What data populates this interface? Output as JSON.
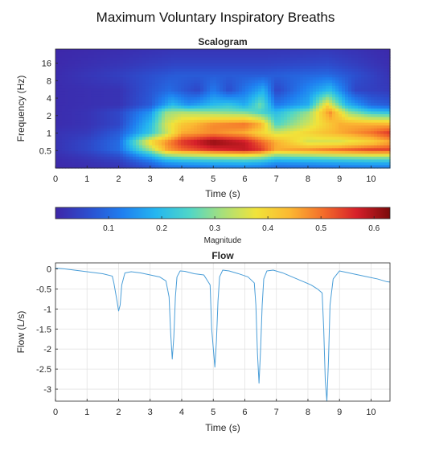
{
  "figure": {
    "title": "Maximum Voluntary Inspiratory Breaths"
  },
  "colormap": [
    "#3e26a8",
    "#2c4fcf",
    "#1f7ff0",
    "#24b6f0",
    "#4fd6c8",
    "#a8e07a",
    "#f1e33a",
    "#fbb832",
    "#f46d2a",
    "#d6202a",
    "#7a0a0a"
  ],
  "chart_data": [
    {
      "type": "heatmap",
      "title": "Scalogram",
      "xlabel": "Time (s)",
      "ylabel": "Frequency (Hz)",
      "xlim": [
        0,
        10.6
      ],
      "x_ticks": [
        "0",
        "1",
        "2",
        "3",
        "4",
        "5",
        "6",
        "7",
        "8",
        "9",
        "10"
      ],
      "y_scale": "log",
      "ylim": [
        0.25,
        28
      ],
      "y_ticks": [
        {
          "value": 0.5,
          "label": "0.5"
        },
        {
          "value": 1,
          "label": "1"
        },
        {
          "value": 2,
          "label": "2"
        },
        {
          "value": 4,
          "label": "4"
        },
        {
          "value": 8,
          "label": "8"
        },
        {
          "value": 16,
          "label": "16"
        }
      ],
      "bands": [
        {
          "freq": 0.5,
          "points": [
            [
              0,
              0.02
            ],
            [
              1,
              0.05
            ],
            [
              2,
              0.1
            ],
            [
              3,
              0.3
            ],
            [
              3.5,
              0.45
            ],
            [
              4,
              0.5
            ],
            [
              5,
              0.55
            ],
            [
              6,
              0.58
            ],
            [
              6.5,
              0.55
            ],
            [
              7,
              0.45
            ],
            [
              8,
              0.48
            ],
            [
              9,
              0.52
            ],
            [
              10,
              0.55
            ],
            [
              10.6,
              0.55
            ]
          ]
        },
        {
          "freq": 0.7,
          "points": [
            [
              0,
              0.02
            ],
            [
              1,
              0.05
            ],
            [
              2,
              0.1
            ],
            [
              3,
              0.4
            ],
            [
              4,
              0.55
            ],
            [
              5,
              0.62
            ],
            [
              6,
              0.58
            ],
            [
              7,
              0.45
            ],
            [
              8,
              0.35
            ],
            [
              9,
              0.35
            ],
            [
              10,
              0.4
            ],
            [
              10.6,
              0.45
            ]
          ]
        },
        {
          "freq": 1.0,
          "points": [
            [
              0,
              0.02
            ],
            [
              1,
              0.03
            ],
            [
              2,
              0.08
            ],
            [
              3,
              0.22
            ],
            [
              4,
              0.45
            ],
            [
              5,
              0.48
            ],
            [
              6,
              0.45
            ],
            [
              7,
              0.35
            ],
            [
              8,
              0.4
            ],
            [
              9,
              0.45
            ],
            [
              10,
              0.5
            ],
            [
              10.6,
              0.55
            ]
          ]
        },
        {
          "freq": 1.4,
          "points": [
            [
              0,
              0.01
            ],
            [
              1,
              0.02
            ],
            [
              2,
              0.05
            ],
            [
              3,
              0.2
            ],
            [
              3.5,
              0.35
            ],
            [
              4,
              0.42
            ],
            [
              5,
              0.48
            ],
            [
              6,
              0.5
            ],
            [
              6.5,
              0.45
            ],
            [
              7,
              0.25
            ],
            [
              8,
              0.35
            ],
            [
              9,
              0.45
            ],
            [
              10,
              0.45
            ],
            [
              10.6,
              0.45
            ]
          ]
        },
        {
          "freq": 2.3,
          "points": [
            [
              0,
              0.01
            ],
            [
              1,
              0.02
            ],
            [
              2,
              0.05
            ],
            [
              3,
              0.15
            ],
            [
              3.5,
              0.3
            ],
            [
              4,
              0.32
            ],
            [
              5,
              0.3
            ],
            [
              6,
              0.28
            ],
            [
              7,
              0.2
            ],
            [
              8,
              0.3
            ],
            [
              8.7,
              0.48
            ],
            [
              9.3,
              0.3
            ],
            [
              10,
              0.22
            ],
            [
              10.6,
              0.2
            ]
          ]
        },
        {
          "freq": 3.0,
          "points": [
            [
              0,
              0.01
            ],
            [
              2,
              0.02
            ],
            [
              3,
              0.08
            ],
            [
              3.7,
              0.2
            ],
            [
              4.2,
              0.15
            ],
            [
              5,
              0.2
            ],
            [
              5.5,
              0.22
            ],
            [
              6,
              0.18
            ],
            [
              6.5,
              0.28
            ],
            [
              7,
              0.12
            ],
            [
              8,
              0.18
            ],
            [
              8.6,
              0.4
            ],
            [
              9.2,
              0.2
            ],
            [
              10,
              0.1
            ],
            [
              10.6,
              0.08
            ]
          ]
        },
        {
          "freq": 5.5,
          "points": [
            [
              0,
              0.01
            ],
            [
              2,
              0.02
            ],
            [
              3.6,
              0.1
            ],
            [
              4.5,
              0.05
            ],
            [
              5,
              0.12
            ],
            [
              5.5,
              0.06
            ],
            [
              6.6,
              0.18
            ],
            [
              7,
              0.05
            ],
            [
              8.7,
              0.2
            ],
            [
              9.5,
              0.05
            ],
            [
              10.6,
              0.03
            ]
          ]
        },
        {
          "freq": 10,
          "points": [
            [
              0,
              0.01
            ],
            [
              2,
              0.04
            ],
            [
              3.8,
              0.08
            ],
            [
              5.2,
              0.08
            ],
            [
              6.6,
              0.08
            ],
            [
              8.6,
              0.1
            ],
            [
              10.6,
              0.02
            ]
          ]
        }
      ],
      "colorbar": {
        "label": "Magnitude",
        "range": [
          0,
          0.63
        ],
        "ticks": [
          {
            "value": 0.1,
            "label": "0.1"
          },
          {
            "value": 0.2,
            "label": "0.2"
          },
          {
            "value": 0.3,
            "label": "0.3"
          },
          {
            "value": 0.4,
            "label": "0.4"
          },
          {
            "value": 0.5,
            "label": "0.5"
          },
          {
            "value": 0.6,
            "label": "0.6"
          }
        ]
      }
    },
    {
      "type": "line",
      "title": "Flow",
      "xlabel": "Time (s)",
      "ylabel": "Flow (L/s)",
      "xlim": [
        0,
        10.6
      ],
      "ylim": [
        -3.3,
        0.15
      ],
      "grid": true,
      "color": "#4a9ed8",
      "x_ticks": [
        "0",
        "1",
        "2",
        "3",
        "4",
        "5",
        "6",
        "7",
        "8",
        "9",
        "10"
      ],
      "y_ticks": [
        {
          "value": 0,
          "label": "0"
        },
        {
          "value": -0.5,
          "label": "-0.5"
        },
        {
          "value": -1,
          "label": "-1"
        },
        {
          "value": -1.5,
          "label": "-1.5"
        },
        {
          "value": -2,
          "label": "-2"
        },
        {
          "value": -2.5,
          "label": "-2.5"
        },
        {
          "value": -3,
          "label": "-3"
        }
      ],
      "x": [
        0,
        0.3,
        0.6,
        0.9,
        1.2,
        1.5,
        1.8,
        1.85,
        1.95,
        2.0,
        2.05,
        2.1,
        2.2,
        2.4,
        2.7,
        3.0,
        3.3,
        3.5,
        3.6,
        3.65,
        3.7,
        3.75,
        3.8,
        3.85,
        3.95,
        4.1,
        4.4,
        4.7,
        4.9,
        4.95,
        5.05,
        5.1,
        5.15,
        5.2,
        5.3,
        5.5,
        5.8,
        6.1,
        6.3,
        6.35,
        6.4,
        6.45,
        6.5,
        6.55,
        6.6,
        6.7,
        6.9,
        7.2,
        7.5,
        7.8,
        8.1,
        8.3,
        8.45,
        8.5,
        8.55,
        8.6,
        8.65,
        8.7,
        8.8,
        9.0,
        9.3,
        9.6,
        9.9,
        10.2,
        10.5,
        10.6
      ],
      "y": [
        0.02,
        0.0,
        -0.03,
        -0.06,
        -0.09,
        -0.12,
        -0.18,
        -0.35,
        -0.8,
        -1.05,
        -0.9,
        -0.4,
        -0.1,
        -0.07,
        -0.1,
        -0.15,
        -0.2,
        -0.3,
        -0.7,
        -1.6,
        -2.25,
        -1.7,
        -0.7,
        -0.2,
        -0.05,
        -0.06,
        -0.12,
        -0.15,
        -0.4,
        -1.5,
        -2.45,
        -1.8,
        -0.8,
        -0.2,
        -0.03,
        -0.05,
        -0.12,
        -0.2,
        -0.35,
        -0.9,
        -2.1,
        -2.85,
        -2.0,
        -0.9,
        -0.25,
        -0.05,
        -0.03,
        -0.1,
        -0.2,
        -0.3,
        -0.4,
        -0.5,
        -0.6,
        -1.5,
        -2.8,
        -3.3,
        -2.3,
        -0.9,
        -0.25,
        -0.05,
        -0.1,
        -0.15,
        -0.2,
        -0.25,
        -0.32,
        -0.33
      ]
    }
  ]
}
